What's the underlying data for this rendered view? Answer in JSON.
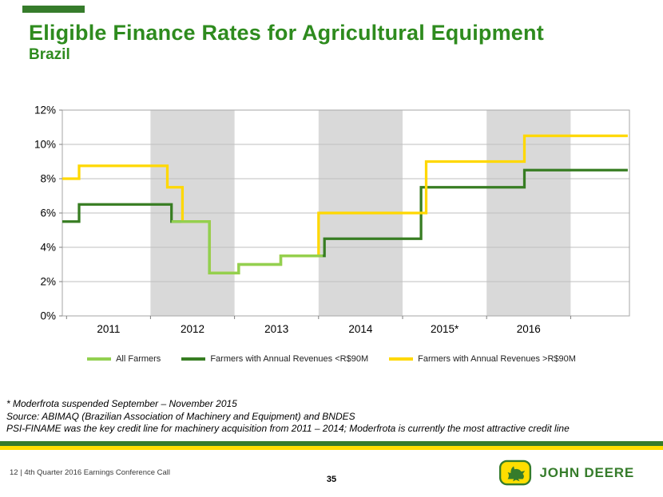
{
  "slide": {
    "title": "Eligible Finance Rates for Agricultural Equipment",
    "subtitle": "Brazil"
  },
  "footnotes": {
    "line1": "* Moderfrota suspended September – November 2015",
    "line2": "Source: ABIMAQ (Brazilian Association of Machinery and Equipment) and BNDES",
    "line3": "PSI-FINAME was the key credit line for machinery acquisition from 2011 – 2014; Moderfrota is currently the most attractive credit line"
  },
  "footer": {
    "left": "12  |  4th Quarter 2016 Earnings Conference Call",
    "page_number": "35",
    "brand": "JOHN DEERE"
  },
  "colors": {
    "title_green": "#2e8b1e",
    "accent_green": "#367c2b",
    "brand_yellow": "#ffde00",
    "band_gray": "#d9d9d9",
    "grid_gray": "#bfbfbf",
    "border_gray": "#a6a6a6",
    "axis_tick": "#7f7f7f"
  },
  "chart_data": {
    "type": "line",
    "title": "",
    "xlabel": "",
    "ylabel": "",
    "xlim": [
      2010.95,
      2017.7
    ],
    "ylim": [
      0,
      12
    ],
    "grid": true,
    "legend_position": "bottom",
    "shaded_bands": [
      [
        2012,
        2013
      ],
      [
        2014,
        2015
      ],
      [
        2016,
        2017
      ]
    ],
    "x_ticks": [
      2011,
      2012,
      2013,
      2014,
      2015,
      2016,
      2017
    ],
    "x_tick_labels": [
      [
        2011.5,
        "2011"
      ],
      [
        2012.5,
        "2012"
      ],
      [
        2013.5,
        "2013"
      ],
      [
        2014.5,
        "2014"
      ],
      [
        2015.5,
        "2015*"
      ],
      [
        2016.5,
        "2016"
      ]
    ],
    "y_ticks": [
      [
        0,
        "0%"
      ],
      [
        2,
        "2%"
      ],
      [
        4,
        "4%"
      ],
      [
        6,
        "6%"
      ],
      [
        8,
        "8%"
      ],
      [
        10,
        "10%"
      ],
      [
        12,
        "12%"
      ]
    ],
    "draw_order": [
      1,
      2,
      0
    ],
    "series": [
      {
        "id": "all-farmers",
        "name": "All Farmers",
        "color": "#92d050",
        "points": [
          [
            2012.25,
            5.5
          ],
          [
            2012.7,
            5.5
          ],
          [
            2012.7,
            2.5
          ],
          [
            2013.05,
            2.5
          ],
          [
            2013.05,
            3.0
          ],
          [
            2013.55,
            3.0
          ],
          [
            2013.55,
            3.5
          ],
          [
            2014.05,
            3.5
          ]
        ]
      },
      {
        "id": "under-90m",
        "name": "Farmers with Annual Revenues <R$90M",
        "color": "#377d22",
        "points": [
          [
            2010.95,
            5.5
          ],
          [
            2011.15,
            5.5
          ],
          [
            2011.15,
            6.5
          ],
          [
            2012.25,
            6.5
          ],
          [
            2012.25,
            5.5
          ],
          [
            2012.7,
            5.5
          ],
          [
            2012.7,
            2.5
          ],
          [
            2013.05,
            2.5
          ],
          [
            2013.05,
            3.0
          ],
          [
            2013.55,
            3.0
          ],
          [
            2013.55,
            3.5
          ],
          [
            2014.07,
            3.5
          ],
          [
            2014.07,
            4.5
          ],
          [
            2015.22,
            4.5
          ],
          [
            2015.22,
            7.5
          ],
          [
            2016.45,
            7.5
          ],
          [
            2016.45,
            8.5
          ],
          [
            2017.68,
            8.5
          ]
        ]
      },
      {
        "id": "over-90m",
        "name": "Farmers with Annual Revenues >R$90M",
        "color": "#ffd800",
        "points": [
          [
            2010.95,
            8.0
          ],
          [
            2011.15,
            8.0
          ],
          [
            2011.15,
            8.75
          ],
          [
            2012.2,
            8.75
          ],
          [
            2012.2,
            7.5
          ],
          [
            2012.38,
            7.5
          ],
          [
            2012.38,
            5.5
          ],
          [
            2012.7,
            5.5
          ],
          [
            2012.7,
            2.5
          ],
          [
            2013.05,
            2.5
          ],
          [
            2013.05,
            3.0
          ],
          [
            2013.55,
            3.0
          ],
          [
            2013.55,
            3.5
          ],
          [
            2014.0,
            3.5
          ],
          [
            2014.0,
            6.0
          ],
          [
            2015.28,
            6.0
          ],
          [
            2015.28,
            9.0
          ],
          [
            2016.45,
            9.0
          ],
          [
            2016.45,
            10.5
          ],
          [
            2017.68,
            10.5
          ]
        ]
      }
    ]
  }
}
